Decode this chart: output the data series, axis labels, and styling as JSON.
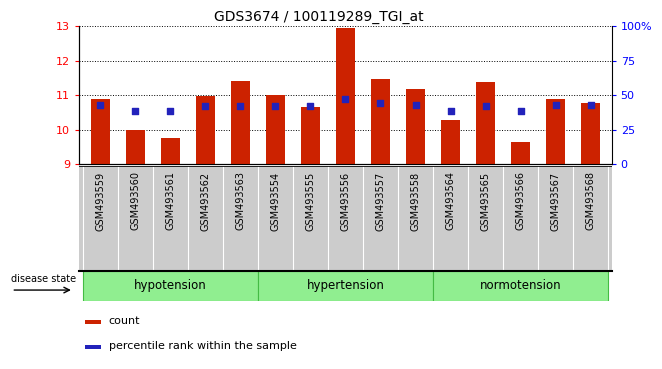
{
  "title": "GDS3674 / 100119289_TGI_at",
  "samples": [
    "GSM493559",
    "GSM493560",
    "GSM493561",
    "GSM493562",
    "GSM493563",
    "GSM493554",
    "GSM493555",
    "GSM493556",
    "GSM493557",
    "GSM493558",
    "GSM493564",
    "GSM493565",
    "GSM493566",
    "GSM493567",
    "GSM493568"
  ],
  "counts": [
    10.88,
    9.98,
    9.75,
    10.98,
    11.42,
    11.02,
    10.65,
    12.95,
    11.48,
    11.18,
    10.28,
    11.38,
    9.65,
    10.88,
    10.78
  ],
  "percentiles_left": [
    10.72,
    10.55,
    10.55,
    10.68,
    10.68,
    10.68,
    10.68,
    10.88,
    10.78,
    10.72,
    10.55,
    10.68,
    10.55,
    10.72,
    10.72
  ],
  "bar_bottom": 9.0,
  "ylim_left": [
    9,
    13
  ],
  "ylim_right": [
    0,
    100
  ],
  "yticks_left": [
    9,
    10,
    11,
    12,
    13
  ],
  "yticks_right": [
    0,
    25,
    50,
    75,
    100
  ],
  "ytick_labels_right": [
    "0",
    "25",
    "50",
    "75",
    "100%"
  ],
  "bar_color": "#cc2200",
  "percentile_color": "#2222bb",
  "light_green": "#90EE90",
  "darker_green": "#44bb44",
  "tick_bg": "#cccccc",
  "disease_state_label": "disease state",
  "legend_count": "count",
  "legend_percentile": "percentile rank within the sample",
  "groups": [
    "hypotension",
    "hypertension",
    "normotension"
  ],
  "group_starts": [
    0,
    5,
    10
  ],
  "group_ends": [
    5,
    10,
    15
  ]
}
